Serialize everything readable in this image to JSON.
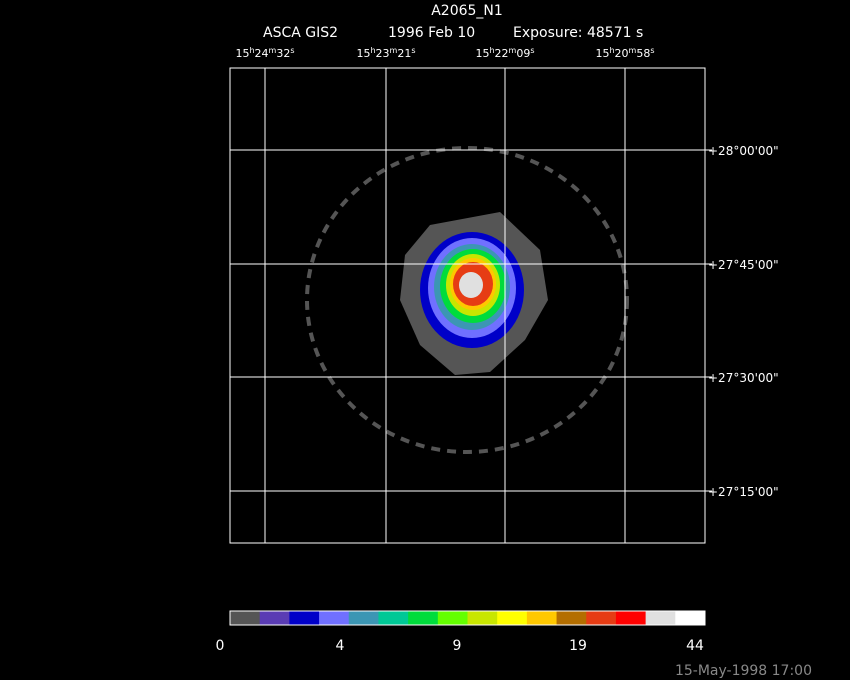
{
  "header": {
    "title": "A2065_N1",
    "instrument": "ASCA GIS2",
    "date": "1996 Feb 10",
    "exposure": "Exposure: 48571 s"
  },
  "ra_labels": [
    [
      "15",
      "h",
      "24",
      "m",
      "32",
      "s"
    ],
    [
      "15",
      "h",
      "23",
      "m",
      "21",
      "s"
    ],
    [
      "15",
      "h",
      "22",
      "m",
      "09",
      "s"
    ],
    [
      "15",
      "h",
      "20",
      "m",
      "58",
      "s"
    ]
  ],
  "dec_labels": [
    "+28°00'00\"",
    "+27°45'00\"",
    "+27°30'00\"",
    "+27°15'00\""
  ],
  "colorbar": {
    "colors": [
      "#555555",
      "#5a3cb4",
      "#0000c8",
      "#7070ff",
      "#3c96b4",
      "#00c896",
      "#00dc3c",
      "#64ff00",
      "#c8e600",
      "#ffff00",
      "#ffc800",
      "#b46e00",
      "#e63c14",
      "#ff0000",
      "#e0e0e0",
      "#ffffff"
    ],
    "labels": [
      0,
      4,
      9,
      19,
      44
    ]
  },
  "footer": "15-May-1998 17:00"
}
